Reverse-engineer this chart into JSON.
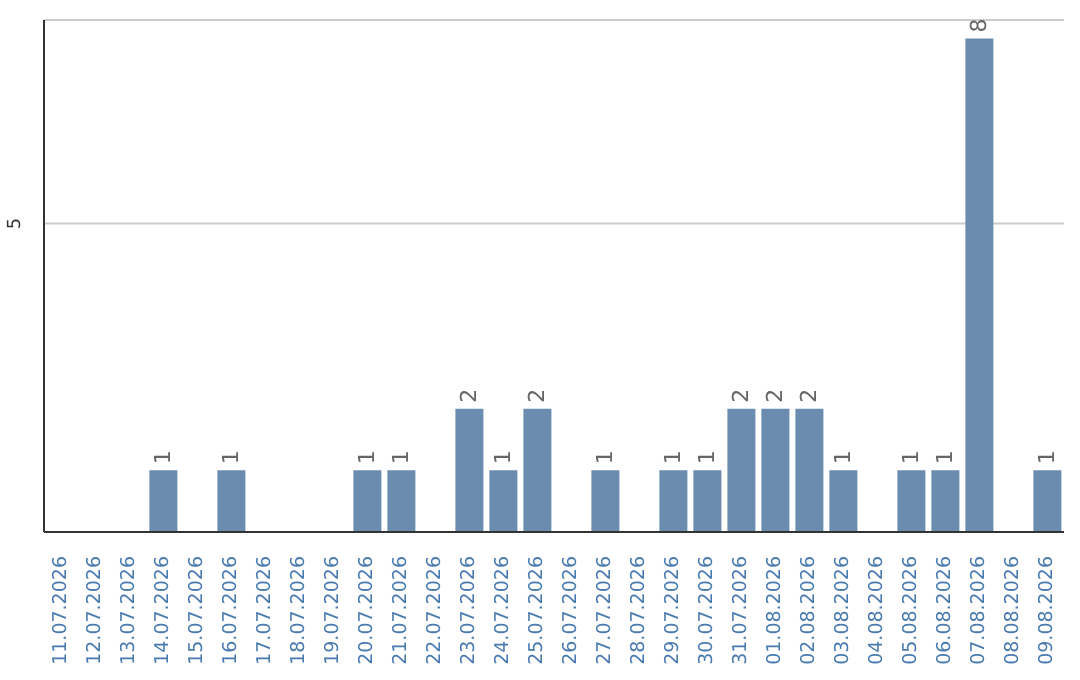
{
  "chart_data": {
    "type": "bar",
    "categories": [
      "11.07.2026",
      "12.07.2026",
      "13.07.2026",
      "14.07.2026",
      "15.07.2026",
      "16.07.2026",
      "17.07.2026",
      "18.07.2026",
      "19.07.2026",
      "20.07.2026",
      "21.07.2026",
      "22.07.2026",
      "23.07.2026",
      "24.07.2026",
      "25.07.2026",
      "26.07.2026",
      "27.07.2026",
      "28.07.2026",
      "29.07.2026",
      "30.07.2026",
      "31.07.2026",
      "01.08.2026",
      "02.08.2026",
      "03.08.2026",
      "04.08.2026",
      "05.08.2026",
      "06.08.2026",
      "07.08.2026",
      "08.08.2026",
      "09.08.2026"
    ],
    "values": [
      0,
      0,
      0,
      1,
      0,
      1,
      0,
      0,
      0,
      1,
      1,
      0,
      2,
      1,
      2,
      0,
      1,
      0,
      1,
      1,
      2,
      2,
      2,
      1,
      0,
      1,
      1,
      8,
      0,
      1
    ],
    "value_labels": [
      null,
      null,
      null,
      "1",
      null,
      "1",
      null,
      null,
      null,
      "1",
      "1",
      null,
      "2",
      "1",
      "2",
      null,
      "1",
      null,
      "1",
      "1",
      "2",
      "2",
      "2",
      "1",
      null,
      "1",
      "1",
      "8",
      null,
      "1"
    ],
    "color": "#6b8cae",
    "ylim": [
      0,
      8.3
    ],
    "yticks": [
      5
    ],
    "grid": "y"
  }
}
